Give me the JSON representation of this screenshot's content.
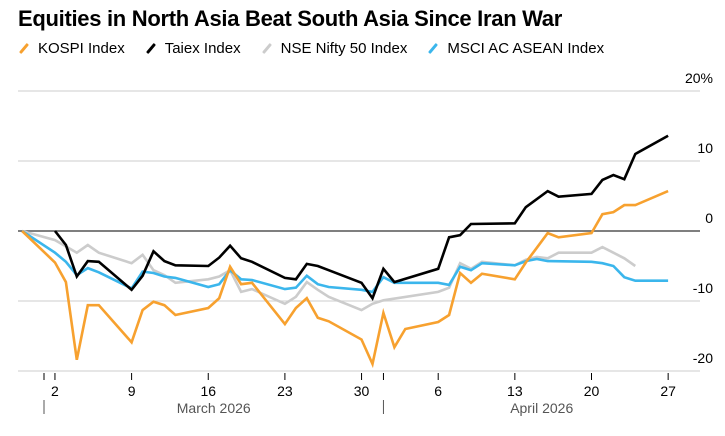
{
  "chart_data": {
    "type": "line",
    "title": "Equities in North Asia Beat South Asia Since Iran War",
    "xlabel": "",
    "ylabel": "",
    "ylim": [
      -20,
      20
    ],
    "y_ticks": [
      {
        "value": 20,
        "label": "20%"
      },
      {
        "value": 10,
        "label": "10"
      },
      {
        "value": 0,
        "label": "0"
      },
      {
        "value": -10,
        "label": "-10"
      },
      {
        "value": -20,
        "label": "-20"
      }
    ],
    "x_ticks": [
      {
        "day": 2,
        "label": "2"
      },
      {
        "day": 9,
        "label": "9"
      },
      {
        "day": 16,
        "label": "16"
      },
      {
        "day": 23,
        "label": "23"
      },
      {
        "day": 30,
        "label": "30"
      },
      {
        "day": 37,
        "label": "6"
      },
      {
        "day": 44,
        "label": "13"
      },
      {
        "day": 51,
        "label": "20"
      },
      {
        "day": 58,
        "label": "27"
      }
    ],
    "months": [
      {
        "label": "March 2026",
        "start_day": 1,
        "end_day": 32
      },
      {
        "label": "April 2026",
        "start_day": 32,
        "end_day": 61
      }
    ],
    "x_note": "x values are day numbers counted from March 1, 2026 = 1 (April 1 = 32)",
    "grid": true,
    "legend_position": "top-left",
    "series": [
      {
        "name": "KOSPI Index",
        "color": "#f7a12f",
        "x": [
          -1,
          2,
          3,
          4,
          5,
          6,
          9,
          10,
          11,
          12,
          13,
          16,
          17,
          18,
          19,
          20,
          23,
          24,
          25,
          26,
          27,
          30,
          31,
          32,
          33,
          34,
          37,
          38,
          39,
          40,
          41,
          44,
          45,
          46,
          47,
          48,
          51,
          52,
          53,
          54,
          55,
          58
        ],
        "values": [
          0,
          -4.5,
          -7.3,
          -18.4,
          -10.6,
          -10.6,
          -15.9,
          -11.3,
          -10.1,
          -10.6,
          -12,
          -11,
          -9.6,
          -5.1,
          -7.6,
          -7.4,
          -13.3,
          -11,
          -9.6,
          -12.4,
          -12.9,
          -15.5,
          -19,
          -11.7,
          -16.6,
          -14,
          -13,
          -12,
          -6,
          -7.4,
          -6.1,
          -6.9,
          -4.5,
          -2.4,
          -0.3,
          -0.9,
          -0.3,
          2.4,
          2.7,
          3.7,
          3.7,
          5.7
        ]
      },
      {
        "name": "Taiex Index",
        "color": "#000000",
        "x": [
          2,
          3,
          4,
          5,
          6,
          9,
          10,
          11,
          12,
          13,
          16,
          17,
          18,
          19,
          20,
          23,
          24,
          25,
          26,
          27,
          30,
          31,
          32,
          33,
          37,
          38,
          39,
          40,
          44,
          45,
          47,
          48,
          51,
          52,
          53,
          54,
          55,
          58
        ],
        "values": [
          0,
          -2,
          -6.5,
          -4.3,
          -4.4,
          -8.4,
          -6.4,
          -2.9,
          -4.3,
          -4.9,
          -5,
          -3.8,
          -2.1,
          -3.9,
          -4.4,
          -6.7,
          -6.9,
          -4.7,
          -5,
          -5.6,
          -7.4,
          -9.6,
          -5.4,
          -7.3,
          -5.4,
          -0.9,
          -0.6,
          1,
          1.1,
          3.4,
          5.7,
          4.9,
          5.3,
          7.3,
          8,
          7.4,
          11,
          13.6
        ]
      },
      {
        "name": "NSE Nifty 50 Index",
        "color": "#cccccc",
        "x": [
          -1,
          2,
          3,
          4,
          5,
          6,
          9,
          10,
          11,
          12,
          13,
          16,
          17,
          18,
          19,
          20,
          23,
          24,
          25,
          26,
          27,
          30,
          31,
          32,
          37,
          38,
          39,
          40,
          41,
          44,
          45,
          46,
          47,
          48,
          51,
          52,
          53,
          54,
          55
        ],
        "values": [
          0,
          -1.3,
          -2.2,
          -3.1,
          -2,
          -3.1,
          -4.6,
          -3.4,
          -5.6,
          -6.3,
          -7.4,
          -6.9,
          -6.5,
          -5.6,
          -8.7,
          -8.3,
          -10.4,
          -9.4,
          -7.3,
          -8.4,
          -9.4,
          -11.3,
          -10.4,
          -9.9,
          -8.7,
          -8.1,
          -4.6,
          -5.4,
          -4.4,
          -4.9,
          -4.1,
          -3.7,
          -3.9,
          -3.1,
          -3.1,
          -2.3,
          -3.1,
          -3.9,
          -5
        ]
      },
      {
        "name": "MSCI AC ASEAN Index",
        "color": "#3bb6ec",
        "x": [
          -1,
          2,
          3,
          4,
          5,
          6,
          9,
          10,
          11,
          12,
          13,
          16,
          17,
          18,
          19,
          20,
          23,
          24,
          25,
          26,
          27,
          30,
          31,
          32,
          33,
          37,
          38,
          39,
          40,
          41,
          44,
          45,
          46,
          47,
          51,
          52,
          53,
          54,
          55,
          58
        ],
        "values": [
          0,
          -3.1,
          -4.4,
          -6.3,
          -5.3,
          -5.9,
          -8.2,
          -5.8,
          -6,
          -6.5,
          -6.7,
          -8,
          -7.6,
          -5.6,
          -6.9,
          -7,
          -8.3,
          -8.1,
          -6.4,
          -7.6,
          -8,
          -8.4,
          -8.7,
          -6.6,
          -7.4,
          -7.4,
          -7.7,
          -5.1,
          -5.6,
          -4.6,
          -4.9,
          -4.3,
          -4,
          -4.3,
          -4.4,
          -4.6,
          -5,
          -6.6,
          -7.1,
          -7.1
        ]
      }
    ]
  }
}
